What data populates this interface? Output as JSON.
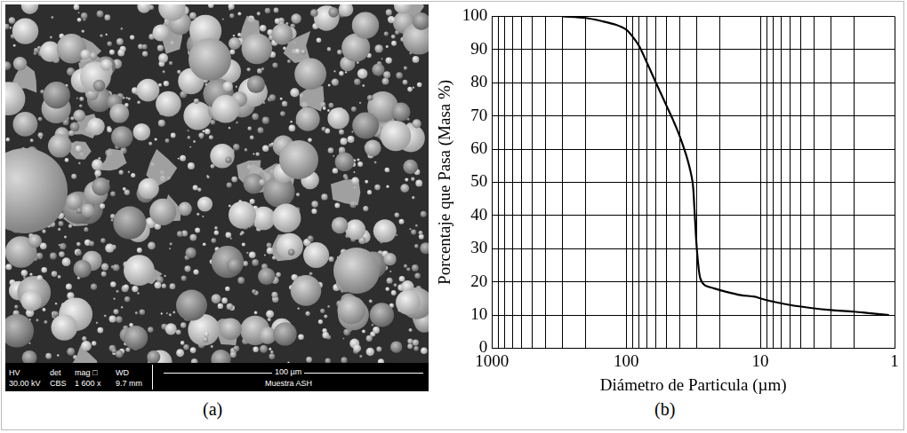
{
  "micrograph": {
    "panel_label": "(a)",
    "info_bar": [
      {
        "head": "HV",
        "value": "30.00 kV"
      },
      {
        "head": "det",
        "value": "CBS"
      },
      {
        "head": "mag □",
        "value": "1 600 x"
      },
      {
        "head": "WD",
        "value": "9.7 mm"
      }
    ],
    "scale_bar": "100 µm",
    "sample": "Muestra ASH"
  },
  "chart_data": {
    "type": "line",
    "panel_label": "(b)",
    "x_label": "Diámetro de Particula (µm)",
    "y_label": "Porcentaje que Pasa (Masa %)",
    "x": [
      300,
      200,
      150,
      120,
      100,
      90,
      80,
      70,
      60,
      50,
      45,
      40,
      35,
      32,
      31,
      30,
      29,
      28,
      26,
      22,
      18,
      14,
      11,
      10,
      8,
      6,
      4,
      3,
      2,
      1.5,
      1.1
    ],
    "values": [
      100,
      99.5,
      98.5,
      97.5,
      96,
      94,
      91,
      86,
      80,
      73,
      69,
      64,
      57,
      50,
      42,
      32,
      25,
      21,
      19,
      18,
      17,
      16,
      15.5,
      15,
      14,
      13,
      12,
      11.5,
      11,
      10.5,
      10
    ],
    "color": "#000000",
    "log": "x",
    "xlim": [
      1000,
      1
    ],
    "xticks": [
      1000,
      100,
      10,
      1
    ],
    "ylim": [
      0,
      100
    ],
    "yticks": [
      0,
      10,
      20,
      30,
      40,
      50,
      60,
      70,
      80,
      90,
      100
    ],
    "grid": true
  }
}
